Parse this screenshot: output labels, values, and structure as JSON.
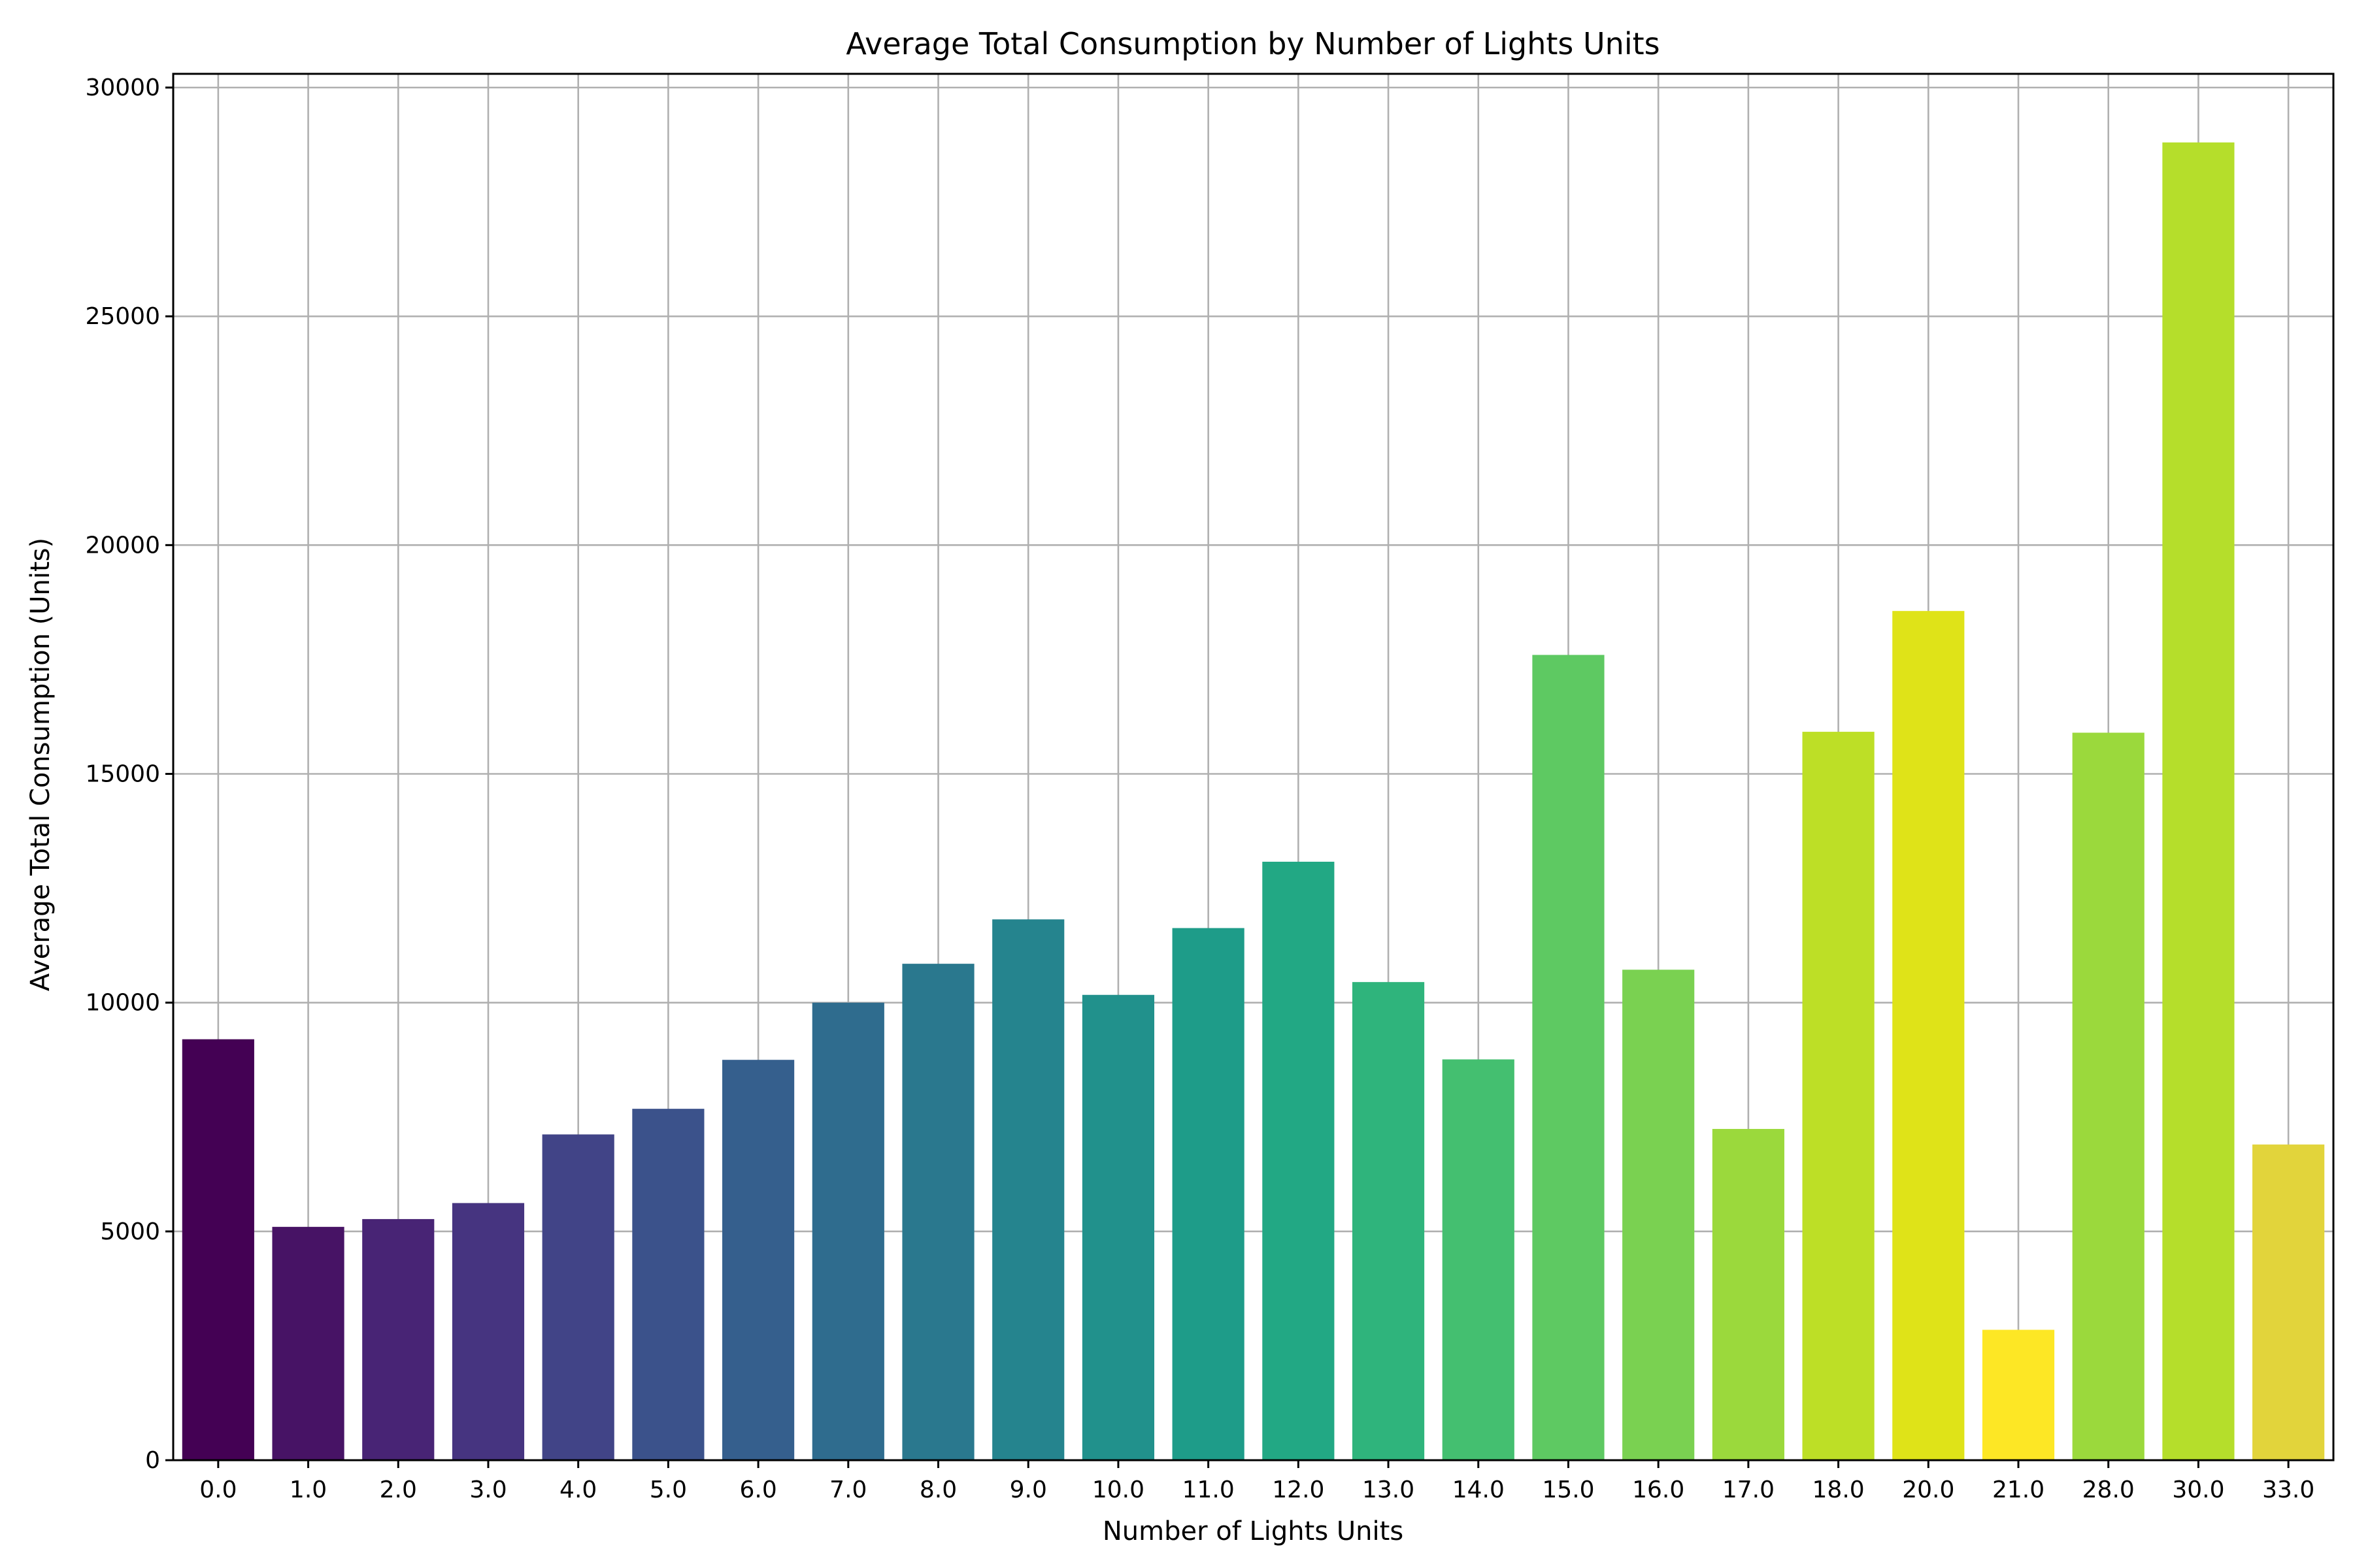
{
  "chart_data": {
    "type": "bar",
    "title": "Average Total Consumption by Number of Lights Units",
    "xlabel": "Number of Lights Units",
    "ylabel": "Average Total Consumption (Units)",
    "categories": [
      "0.0",
      "1.0",
      "2.0",
      "3.0",
      "4.0",
      "5.0",
      "6.0",
      "7.0",
      "8.0",
      "9.0",
      "10.0",
      "11.0",
      "12.0",
      "13.0",
      "14.0",
      "15.0",
      "16.0",
      "17.0",
      "18.0",
      "20.0",
      "21.0",
      "28.0",
      "30.0",
      "33.0"
    ],
    "values": [
      9200,
      5100,
      5270,
      5620,
      7120,
      7680,
      8750,
      10000,
      10850,
      11820,
      10170,
      11630,
      13080,
      10450,
      8760,
      17600,
      10720,
      7240,
      15920,
      18560,
      2850,
      15900,
      28800,
      6900
    ],
    "colors": [
      "#440154",
      "#471365",
      "#482475",
      "#463480",
      "#414487",
      "#3b528b",
      "#355f8d",
      "#2f6c8e",
      "#2a788e",
      "#25848e",
      "#21918c",
      "#1e9c89",
      "#22a884",
      "#2fb47c",
      "#44bf70",
      "#5ec962",
      "#7ad151",
      "#9bd93c",
      "#bddf26",
      "#dfe318",
      "#fde725",
      "#9bd93c",
      "#b5de2b",
      "#e2d43b"
    ],
    "ylim": [
      0,
      30300
    ],
    "yticks": [
      0,
      5000,
      10000,
      15000,
      20000,
      25000,
      30000
    ],
    "grid": true,
    "legend": "none"
  }
}
